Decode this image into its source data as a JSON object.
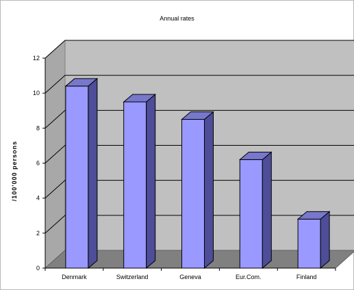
{
  "chart_data": {
    "type": "bar",
    "title": "Annual rates",
    "ylabel": "/100'000 persons",
    "xlabel": "",
    "categories": [
      "Denmark",
      "Switzerland",
      "Geneva",
      "Eur.Com.",
      "Finland"
    ],
    "values": [
      10.4,
      9.5,
      8.5,
      6.2,
      2.8
    ],
    "ylim": [
      0,
      12
    ],
    "yticks": [
      "0",
      "2",
      "4",
      "6",
      "8",
      "10",
      "12"
    ],
    "grid": true,
    "three_d": true,
    "legend": "none",
    "colors": {
      "bar_front": "#9999ff",
      "bar_side": "#4d4d99",
      "bar_top": "#7777cc",
      "wall": "#c0c0c0",
      "floor": "#808080",
      "gridline": "#000000"
    }
  }
}
